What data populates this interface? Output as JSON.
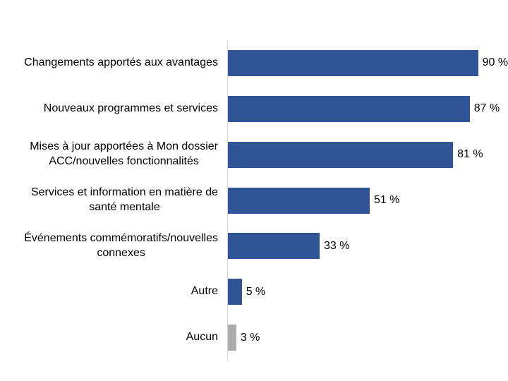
{
  "chart_data": {
    "type": "bar",
    "orientation": "horizontal",
    "title": "",
    "xlabel": "",
    "ylabel": "",
    "xlim": [
      0,
      100
    ],
    "grid": false,
    "legend": false,
    "axis_line_color": "#D9D9D9",
    "default_bar_color": "#2F5597",
    "categories": [
      "Changements apportés aux avantages",
      "Nouveaux programmes et services",
      "Mises à jour apportées à Mon dossier\nACC/nouvelles fonctionnalités",
      "Services et information en matière de\nsanté mentale",
      "Événements commémoratifs/nouvelles\nconnexes",
      "Autre",
      "Aucun"
    ],
    "values": [
      90,
      87,
      81,
      51,
      33,
      5,
      3
    ],
    "value_labels": [
      "90 %",
      "87 %",
      "81 %",
      "51 %",
      "33 %",
      "5 %",
      "3 %"
    ],
    "bar_colors": [
      "#2F5597",
      "#2F5597",
      "#2F5597",
      "#2F5597",
      "#2F5597",
      "#2F5597",
      "#ABABAB"
    ]
  }
}
